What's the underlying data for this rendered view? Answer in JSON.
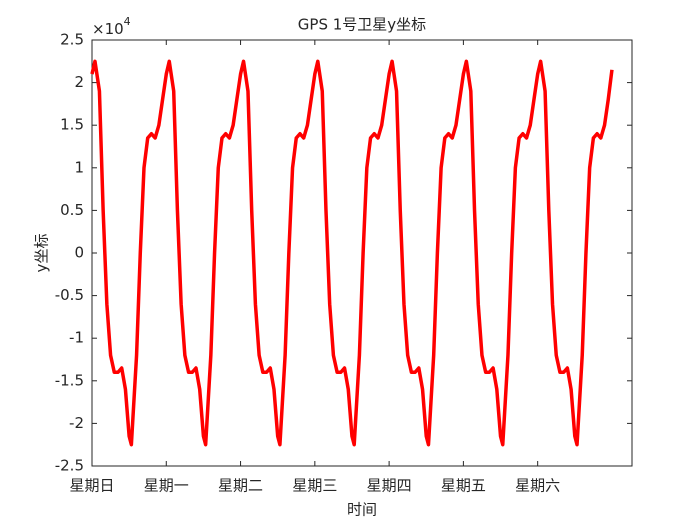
{
  "chart_data": {
    "type": "line",
    "title": "GPS 1号卫星y坐标",
    "xlabel": "时间",
    "ylabel": "y坐标",
    "y_multiplier_base": "×10",
    "y_multiplier_exponent": "4",
    "xlim": [
      0,
      7.27
    ],
    "ylim": [
      -2.5,
      2.5
    ],
    "xticks": [
      {
        "value": 0,
        "label": "星期日"
      },
      {
        "value": 1,
        "label": "星期一"
      },
      {
        "value": 2,
        "label": "星期二"
      },
      {
        "value": 3,
        "label": "星期三"
      },
      {
        "value": 4,
        "label": "星期四"
      },
      {
        "value": 5,
        "label": "星期五"
      },
      {
        "value": 6,
        "label": "星期六"
      }
    ],
    "yticks": [
      -2.5,
      -2,
      -1.5,
      -1,
      -0.5,
      0,
      0.5,
      1,
      1.5,
      2,
      2.5
    ],
    "x": [
      0,
      0.04,
      0.1,
      0.15,
      0.2,
      0.25,
      0.3,
      0.35,
      0.4,
      0.45,
      0.5,
      0.53,
      0.6,
      0.65,
      0.7,
      0.75,
      0.8,
      0.85,
      0.9,
      0.95,
      1,
      1.04,
      1.1,
      1.15,
      1.2,
      1.25,
      1.3,
      1.35,
      1.4,
      1.45,
      1.5,
      1.53,
      1.6,
      1.65,
      1.7,
      1.75,
      1.8,
      1.85,
      1.9,
      1.95,
      2,
      2.04,
      2.1,
      2.15,
      2.2,
      2.25,
      2.3,
      2.35,
      2.4,
      2.45,
      2.5,
      2.53,
      2.6,
      2.65,
      2.7,
      2.75,
      2.8,
      2.85,
      2.9,
      2.95,
      3,
      3.04,
      3.1,
      3.15,
      3.2,
      3.25,
      3.3,
      3.35,
      3.4,
      3.45,
      3.5,
      3.53,
      3.6,
      3.65,
      3.7,
      3.75,
      3.8,
      3.85,
      3.9,
      3.95,
      4,
      4.04,
      4.1,
      4.15,
      4.2,
      4.25,
      4.3,
      4.35,
      4.4,
      4.45,
      4.5,
      4.53,
      4.6,
      4.65,
      4.7,
      4.75,
      4.8,
      4.85,
      4.9,
      4.95,
      5,
      5.04,
      5.1,
      5.15,
      5.2,
      5.25,
      5.3,
      5.35,
      5.4,
      5.45,
      5.5,
      5.53,
      5.6,
      5.65,
      5.7,
      5.75,
      5.8,
      5.85,
      5.9,
      5.95,
      6,
      6.04,
      6.1,
      6.15,
      6.2,
      6.25,
      6.3,
      6.35,
      6.4,
      6.45,
      6.5,
      6.53,
      6.6,
      6.65,
      6.7,
      6.75,
      6.8,
      6.85,
      6.9,
      6.95,
      7
    ],
    "series": [
      {
        "color": "#ff0000",
        "values": [
          2.1,
          2.25,
          1.9,
          0.5,
          -0.6,
          -1.2,
          -1.4,
          -1.4,
          -1.35,
          -1.6,
          -2.15,
          -2.25,
          -1.2,
          0,
          1.0,
          1.35,
          1.4,
          1.35,
          1.5,
          1.8,
          2.1,
          2.25,
          1.9,
          0.5,
          -0.6,
          -1.2,
          -1.4,
          -1.4,
          -1.35,
          -1.6,
          -2.15,
          -2.25,
          -1.2,
          0,
          1.0,
          1.35,
          1.4,
          1.35,
          1.5,
          1.8,
          2.1,
          2.25,
          1.9,
          0.5,
          -0.6,
          -1.2,
          -1.4,
          -1.4,
          -1.35,
          -1.6,
          -2.15,
          -2.25,
          -1.2,
          0,
          1.0,
          1.35,
          1.4,
          1.35,
          1.5,
          1.8,
          2.1,
          2.25,
          1.9,
          0.5,
          -0.6,
          -1.2,
          -1.4,
          -1.4,
          -1.35,
          -1.6,
          -2.15,
          -2.25,
          -1.2,
          0,
          1.0,
          1.35,
          1.4,
          1.35,
          1.5,
          1.8,
          2.1,
          2.25,
          1.9,
          0.5,
          -0.6,
          -1.2,
          -1.4,
          -1.4,
          -1.35,
          -1.6,
          -2.15,
          -2.25,
          -1.2,
          0,
          1.0,
          1.35,
          1.4,
          1.35,
          1.5,
          1.8,
          2.1,
          2.25,
          1.9,
          0.5,
          -0.6,
          -1.2,
          -1.4,
          -1.4,
          -1.35,
          -1.6,
          -2.15,
          -2.25,
          -1.2,
          0,
          1.0,
          1.35,
          1.4,
          1.35,
          1.5,
          1.8,
          2.1,
          2.25,
          1.9,
          0.5,
          -0.6,
          -1.2,
          -1.4,
          -1.4,
          -1.35,
          -1.6,
          -2.15,
          -2.25,
          -1.2,
          0,
          1.0,
          1.35,
          1.4,
          1.35,
          1.5,
          1.8,
          2.15
        ]
      }
    ]
  }
}
